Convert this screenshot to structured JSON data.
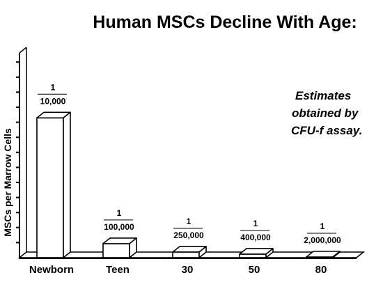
{
  "chart_data": {
    "type": "bar",
    "title": "Human MSCs Decline With Age:",
    "ylabel": "MSCs per Marrow Cells",
    "xlabel": "",
    "annotation_lines": [
      "Estimates",
      "obtained by",
      "CFU-f assay."
    ],
    "categories": [
      "Newborn",
      "Teen",
      "30",
      "50",
      "80"
    ],
    "values": [
      0.0001,
      1e-05,
      4e-06,
      2.5e-06,
      5e-07
    ],
    "data_labels": [
      {
        "numerator": "1",
        "denominator": "10,000"
      },
      {
        "numerator": "1",
        "denominator": "100,000"
      },
      {
        "numerator": "1",
        "denominator": "250,000"
      },
      {
        "numerator": "1",
        "denominator": "400,000"
      },
      {
        "numerator": "1",
        "denominator": "2,000,000"
      }
    ],
    "ylim": [
      0,
      0.000137
    ],
    "grid": false,
    "legend": "none",
    "style": "3d-outline",
    "colors": {
      "bar_fill": "#ffffff",
      "outline": "#000000"
    }
  }
}
